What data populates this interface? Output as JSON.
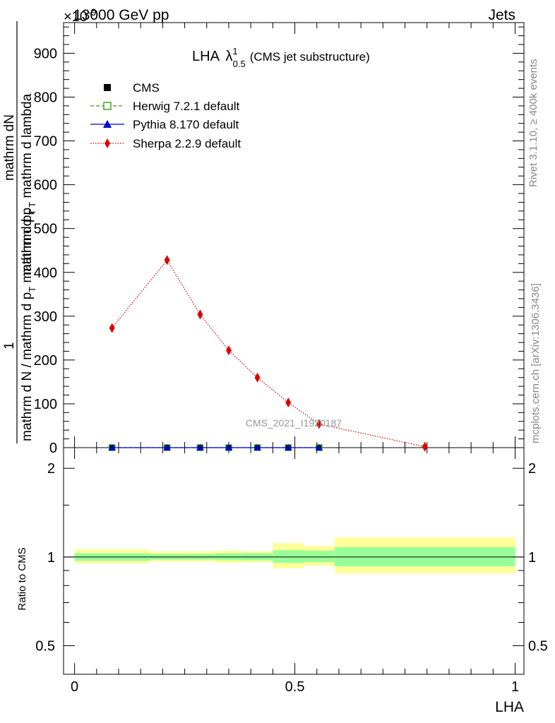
{
  "header": {
    "left": "13000 GeV pp",
    "right": "Jets",
    "exponent_label": "×10",
    "exponent_power": "-9"
  },
  "title": {
    "main": "LHA",
    "lambda": "λ",
    "lambda_sup": "1",
    "lambda_sub": "0.5",
    "suffix": "(CMS jet substructure)"
  },
  "side": {
    "rivet": "Rivet 3.1.10, ≥ 400k events",
    "mcplots": "mcplots.cern.ch [arXiv:1306.3436]"
  },
  "watermark": "CMS_2021_I1920187",
  "ylabel_main": {
    "numerator": "mathrm dN",
    "denominator": "mathrm d p",
    "den_sub": "T",
    "den_rest": " mathrm d lambda",
    "left_num": "1",
    "left_den_a": "mathrm d N / mathrm d p",
    "left_den_sub": "T",
    "left_den_b": " mathrm d p",
    "left_den_sub2": "T"
  },
  "chart_data": [
    {
      "type": "line",
      "panel": "main",
      "title": "LHA λ^1_0.5 (CMS jet substructure)",
      "xlabel": "LHA",
      "ylabel": "1 / (mathrm d N / mathrm d p_T mathrm d p_T) · mathrm dN / (mathrm d p_T mathrm d lambda)",
      "y_unit_scale": "×10^-9",
      "xlim": [
        -0.025,
        1.02
      ],
      "ylim": [
        0,
        970
      ],
      "yticks": [
        0,
        100,
        200,
        300,
        400,
        500,
        600,
        700,
        800,
        900
      ],
      "ytick_labels": [
        "0",
        "100",
        "200",
        "300",
        "400",
        "500",
        "600",
        "700",
        "800",
        "900"
      ],
      "legend_position": "top-left",
      "series": [
        {
          "name": "CMS",
          "marker": "square",
          "color": "#000000",
          "x": [
            0.085,
            0.21,
            0.285,
            0.35,
            0.415,
            0.485,
            0.555
          ],
          "y": [
            0,
            0,
            0,
            0,
            0,
            0,
            0
          ]
        },
        {
          "name": "Herwig 7.2.1 default",
          "marker": "open-square",
          "color": "#3a9a1a",
          "x": [
            0.085,
            0.21,
            0.285,
            0.35,
            0.415,
            0.485,
            0.555
          ],
          "y": [
            0,
            0,
            0,
            0,
            0,
            0,
            0
          ]
        },
        {
          "name": "Pythia 8.170 default",
          "marker": "triangle",
          "color": "#0000cc",
          "x": [
            0.085,
            0.21,
            0.285,
            0.35,
            0.415,
            0.485,
            0.555
          ],
          "y": [
            0,
            0,
            0,
            0,
            0,
            0,
            0
          ]
        },
        {
          "name": "Sherpa 2.2.9 default",
          "marker": "diamond",
          "color": "#dd0000",
          "x": [
            0.085,
            0.21,
            0.285,
            0.35,
            0.415,
            0.485,
            0.555,
            0.795
          ],
          "y": [
            273,
            428,
            304,
            222,
            160,
            103,
            54,
            2
          ]
        }
      ]
    },
    {
      "type": "area",
      "panel": "ratio",
      "ylabel": "Ratio to CMS",
      "xlabel": "LHA",
      "xlim": [
        -0.025,
        1.02
      ],
      "ylim_log": [
        0.4,
        2.35
      ],
      "yticks": [
        0.5,
        1,
        2
      ],
      "ytick_labels": [
        "0.5",
        "1",
        "2"
      ],
      "xticks": [
        0,
        0.5,
        1
      ],
      "xtick_labels": [
        "0",
        "0.5",
        "1"
      ],
      "reference": 1,
      "bins": [
        {
          "lo": 0.0,
          "hi": 0.17,
          "stat_lo": 0.97,
          "stat_hi": 1.03,
          "tot_lo": 0.95,
          "tot_hi": 1.06
        },
        {
          "lo": 0.17,
          "hi": 0.25,
          "stat_lo": 0.98,
          "stat_hi": 1.025,
          "tot_lo": 0.965,
          "tot_hi": 1.045
        },
        {
          "lo": 0.25,
          "hi": 0.32,
          "stat_lo": 0.98,
          "stat_hi": 1.025,
          "tot_lo": 0.965,
          "tot_hi": 1.045
        },
        {
          "lo": 0.32,
          "hi": 0.38,
          "stat_lo": 0.975,
          "stat_hi": 1.03,
          "tot_lo": 0.955,
          "tot_hi": 1.05
        },
        {
          "lo": 0.38,
          "hi": 0.45,
          "stat_lo": 0.975,
          "stat_hi": 1.03,
          "tot_lo": 0.96,
          "tot_hi": 1.045
        },
        {
          "lo": 0.45,
          "hi": 0.52,
          "stat_lo": 0.955,
          "stat_hi": 1.055,
          "tot_lo": 0.915,
          "tot_hi": 1.115
        },
        {
          "lo": 0.52,
          "hi": 0.59,
          "stat_lo": 0.96,
          "stat_hi": 1.05,
          "tot_lo": 0.935,
          "tot_hi": 1.09
        },
        {
          "lo": 0.59,
          "hi": 1.0,
          "stat_lo": 0.93,
          "stat_hi": 1.08,
          "tot_lo": 0.88,
          "tot_hi": 1.165
        }
      ]
    }
  ],
  "colors": {
    "band_inner": "#99ff99",
    "band_outer": "#ffff99",
    "cms": "#000000",
    "herwig": "#3a9a1a",
    "pythia": "#0000cc",
    "sherpa": "#dd0000",
    "side_text": "#888888",
    "watermark": "#999999"
  }
}
